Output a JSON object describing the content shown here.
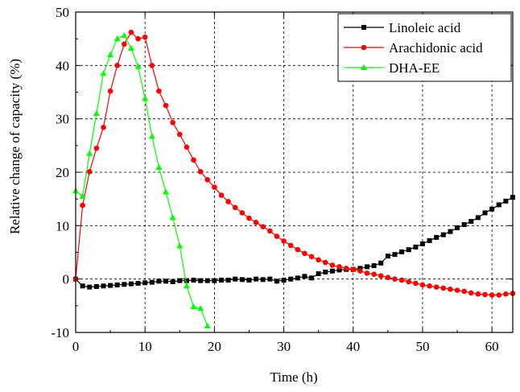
{
  "chart_data": {
    "type": "line",
    "title": "",
    "xlabel": "Time (h)",
    "ylabel": "Relative change of capacity (%)",
    "xlim": [
      0,
      63
    ],
    "ylim": [
      -10,
      50
    ],
    "xticks": [
      0,
      10,
      20,
      30,
      40,
      50,
      60
    ],
    "yticks": [
      -10,
      0,
      10,
      20,
      30,
      40,
      50
    ],
    "xtick_labels": [
      "0",
      "10",
      "20",
      "30",
      "40",
      "50",
      "60"
    ],
    "ytick_labels": [
      "-10",
      "0",
      "10",
      "20",
      "30",
      "40",
      "50"
    ],
    "grid": true,
    "legend_position": "top-right",
    "series": [
      {
        "name": "Linoleic acid",
        "color": "#000000",
        "marker": "square",
        "x": [
          0,
          1,
          2,
          3,
          4,
          5,
          6,
          7,
          8,
          9,
          10,
          11,
          12,
          13,
          14,
          15,
          16,
          17,
          18,
          19,
          20,
          21,
          22,
          23,
          24,
          25,
          26,
          27,
          28,
          29,
          30,
          31,
          32,
          33,
          34,
          35,
          36,
          37,
          38,
          39,
          40,
          41,
          42,
          43,
          44,
          45,
          46,
          47,
          48,
          49,
          50,
          51,
          52,
          53,
          54,
          55,
          56,
          57,
          58,
          59,
          60,
          61,
          62,
          63
        ],
        "y": [
          0,
          -1.3,
          -1.5,
          -1.4,
          -1.3,
          -1.2,
          -1.1,
          -1.0,
          -0.9,
          -0.8,
          -0.7,
          -0.6,
          -0.4,
          -0.4,
          -0.5,
          -0.3,
          -0.3,
          -0.2,
          -0.3,
          -0.3,
          -0.3,
          -0.2,
          -0.2,
          0.0,
          -0.1,
          -0.2,
          0.0,
          -0.1,
          0.0,
          -0.4,
          -0.2,
          0.0,
          0.2,
          0.5,
          0.2,
          1.0,
          1.3,
          1.5,
          1.7,
          1.8,
          1.8,
          2.0,
          2.3,
          2.5,
          3.0,
          4.3,
          4.6,
          5.1,
          5.5,
          6.0,
          6.6,
          7.2,
          7.8,
          8.3,
          8.9,
          9.6,
          10.2,
          10.8,
          11.5,
          12.4,
          13.1,
          13.9,
          14.6,
          15.3
        ]
      },
      {
        "name": "Arachidonic acid",
        "color": "#ff0000",
        "marker": "circle",
        "x": [
          0,
          1,
          2,
          3,
          4,
          5,
          6,
          7,
          8,
          9,
          10,
          11,
          12,
          13,
          14,
          15,
          16,
          17,
          18,
          19,
          20,
          21,
          22,
          23,
          24,
          25,
          26,
          27,
          28,
          29,
          30,
          31,
          32,
          33,
          34,
          35,
          36,
          37,
          38,
          39,
          40,
          41,
          42,
          43,
          44,
          45,
          46,
          47,
          48,
          49,
          50,
          51,
          52,
          53,
          54,
          55,
          56,
          57,
          58,
          59,
          60,
          61,
          62,
          63
        ],
        "y": [
          0,
          13.8,
          20.1,
          24.5,
          28.4,
          35.2,
          40.0,
          44.0,
          46.2,
          45.0,
          45.3,
          40.0,
          35.2,
          32.5,
          29.3,
          27.1,
          24.7,
          22.3,
          20.1,
          18.6,
          17.2,
          15.7,
          14.5,
          13.4,
          12.4,
          11.4,
          10.6,
          9.8,
          9.0,
          8.0,
          7.1,
          6.3,
          5.5,
          4.8,
          4.2,
          3.6,
          3.1,
          2.6,
          2.3,
          2.0,
          1.8,
          1.5,
          1.1,
          0.9,
          0.6,
          0.3,
          0.0,
          -0.2,
          -0.5,
          -0.8,
          -1.1,
          -1.3,
          -1.5,
          -1.7,
          -1.9,
          -2.1,
          -2.3,
          -2.6,
          -2.8,
          -2.9,
          -3.0,
          -3.0,
          -2.8,
          -2.7
        ]
      },
      {
        "name": "DHA-EE",
        "color": "#00ff00",
        "marker": "triangle",
        "x": [
          0,
          1,
          2,
          3,
          4,
          5,
          6,
          7,
          8,
          9,
          10,
          11,
          12,
          13,
          14,
          15,
          16,
          17,
          18,
          19
        ],
        "y": [
          16.5,
          15.5,
          23.5,
          31.0,
          38.5,
          42.0,
          45.0,
          45.6,
          43.2,
          39.8,
          33.8,
          26.7,
          20.9,
          16.3,
          11.5,
          6.2,
          -1.3,
          -5.2,
          -5.5,
          -8.8
        ]
      }
    ]
  }
}
